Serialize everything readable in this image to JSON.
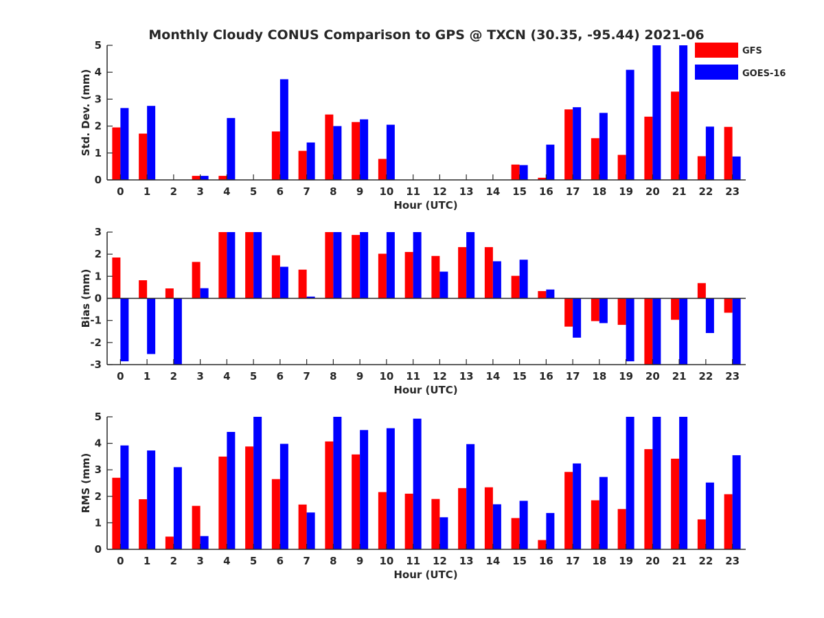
{
  "title": "Monthly Cloudy CONUS Comparison to GPS @ TXCN (30.35, -95.44) 2021-06",
  "colors": {
    "GFS": "#ff0000",
    "GOES-16": "#0000ff",
    "axis": "#262626"
  },
  "legend": {
    "placement": "top-right",
    "entries": [
      "GFS",
      "GOES-16"
    ]
  },
  "chart_data": [
    {
      "type": "bar",
      "ylabel": "Std. Dev. (mm)",
      "xlabel": "Hour (UTC)",
      "ylim": [
        0,
        5
      ],
      "yticks": [
        0,
        1,
        2,
        3,
        4,
        5
      ],
      "categories": [
        "0",
        "1",
        "2",
        "3",
        "4",
        "5",
        "6",
        "7",
        "8",
        "9",
        "10",
        "11",
        "12",
        "13",
        "14",
        "15",
        "16",
        "17",
        "18",
        "19",
        "20",
        "21",
        "22",
        "23"
      ],
      "series": [
        {
          "name": "GFS",
          "values": [
            1.95,
            1.72,
            0,
            0.15,
            0.15,
            0,
            1.8,
            1.08,
            2.43,
            2.15,
            0.78,
            0,
            0,
            0,
            0,
            0.57,
            0.08,
            2.62,
            1.55,
            0.93,
            2.35,
            3.28,
            0.88,
            1.97
          ]
        },
        {
          "name": "GOES-16",
          "values": [
            2.67,
            2.75,
            0,
            0.15,
            2.3,
            0,
            3.74,
            1.39,
            2.0,
            2.25,
            2.05,
            0,
            0,
            0,
            0,
            0.55,
            1.31,
            2.7,
            2.49,
            4.09,
            5.0,
            5.0,
            1.98,
            0.87
          ]
        }
      ]
    },
    {
      "type": "bar",
      "ylabel": "Bias (mm)",
      "xlabel": "Hour (UTC)",
      "ylim": [
        -3,
        3
      ],
      "yticks": [
        -3,
        -2,
        -1,
        0,
        1,
        2,
        3
      ],
      "categories": [
        "0",
        "1",
        "2",
        "3",
        "4",
        "5",
        "6",
        "7",
        "8",
        "9",
        "10",
        "11",
        "12",
        "13",
        "14",
        "15",
        "16",
        "17",
        "18",
        "19",
        "20",
        "21",
        "22",
        "23"
      ],
      "series": [
        {
          "name": "GFS",
          "values": [
            1.85,
            0.82,
            0.45,
            1.65,
            3.0,
            3.0,
            1.95,
            1.3,
            3.0,
            2.87,
            2.02,
            2.1,
            1.92,
            2.32,
            2.32,
            1.02,
            0.33,
            -1.28,
            -1.03,
            -1.2,
            -3.0,
            -0.97,
            0.69,
            -0.65
          ]
        },
        {
          "name": "GOES-16",
          "values": [
            -2.85,
            -2.52,
            -3.0,
            0.46,
            3.0,
            3.0,
            1.43,
            0.08,
            3.0,
            3.0,
            3.0,
            3.0,
            1.21,
            3.0,
            1.68,
            1.75,
            0.4,
            -1.78,
            -1.12,
            -2.85,
            -3.0,
            -3.0,
            -1.57,
            -3.0
          ]
        }
      ]
    },
    {
      "type": "bar",
      "ylabel": "RMS (mm)",
      "xlabel": "Hour (UTC)",
      "ylim": [
        0,
        5
      ],
      "yticks": [
        0,
        1,
        2,
        3,
        4,
        5
      ],
      "categories": [
        "0",
        "1",
        "2",
        "3",
        "4",
        "5",
        "6",
        "7",
        "8",
        "9",
        "10",
        "11",
        "12",
        "13",
        "14",
        "15",
        "16",
        "17",
        "18",
        "19",
        "20",
        "21",
        "22",
        "23"
      ],
      "series": [
        {
          "name": "GFS",
          "values": [
            2.7,
            1.89,
            0.48,
            1.64,
            3.5,
            3.88,
            2.65,
            1.69,
            4.07,
            3.58,
            2.16,
            2.1,
            1.9,
            2.31,
            2.34,
            1.18,
            0.35,
            2.92,
            1.85,
            1.52,
            3.78,
            3.42,
            1.13,
            2.08
          ]
        },
        {
          "name": "GOES-16",
          "values": [
            3.92,
            3.73,
            3.1,
            0.5,
            4.43,
            5.0,
            3.98,
            1.39,
            5.0,
            4.5,
            4.57,
            4.93,
            1.21,
            3.97,
            1.7,
            1.83,
            1.37,
            3.24,
            2.73,
            5.0,
            5.0,
            5.0,
            2.52,
            3.55
          ]
        }
      ]
    }
  ]
}
